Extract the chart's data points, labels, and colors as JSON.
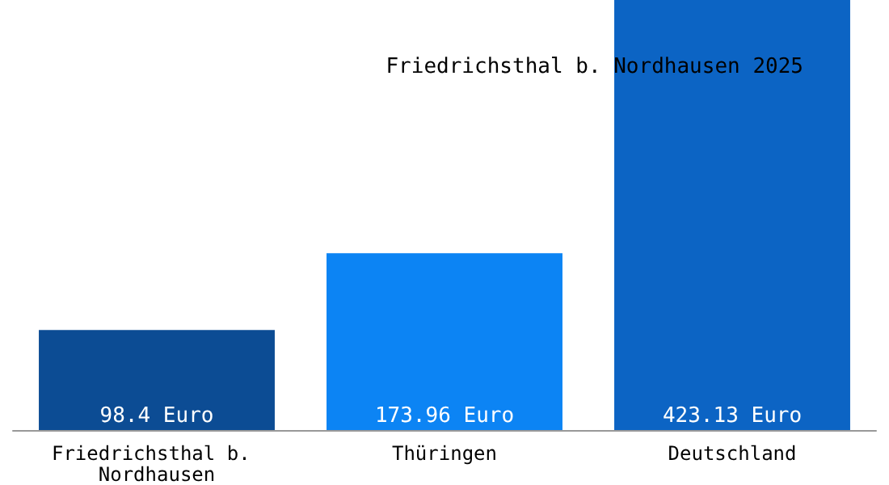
{
  "chart_data": {
    "type": "bar",
    "title": "Friedrichsthal b. Nordhausen 2025",
    "categories": [
      "Friedrichsthal b. Nordhausen",
      "Thüringen",
      "Deutschland"
    ],
    "values": [
      98.4,
      173.96,
      423.13
    ],
    "colors": [
      "#0c4c94",
      "#0c84f4",
      "#0c64c4"
    ],
    "value_labels": [
      "98.4 Euro",
      "173.96 Euro",
      "423.13 Euro"
    ]
  }
}
